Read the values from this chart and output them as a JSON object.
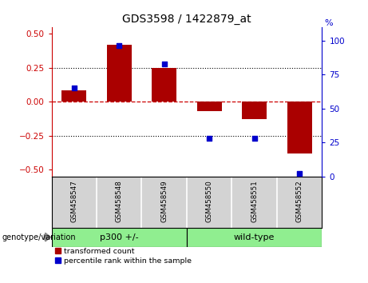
{
  "title": "GDS3598 / 1422879_at",
  "categories": [
    "GSM458547",
    "GSM458548",
    "GSM458549",
    "GSM458550",
    "GSM458551",
    "GSM458552"
  ],
  "bar_values": [
    0.08,
    0.42,
    0.25,
    -0.07,
    -0.13,
    -0.38
  ],
  "scatter_percentile": [
    65,
    96,
    83,
    28,
    28,
    2
  ],
  "bar_color": "#AA0000",
  "scatter_color": "#0000CC",
  "ylim_left": [
    -0.55,
    0.55
  ],
  "ylim_right": [
    0,
    110
  ],
  "yticks_left": [
    -0.5,
    -0.25,
    0.0,
    0.25,
    0.5
  ],
  "yticks_right": [
    0,
    25,
    50,
    75,
    100
  ],
  "dotted_lines": [
    -0.25,
    0.25
  ],
  "left_axis_color": "#CC0000",
  "right_axis_color": "#0000CC",
  "legend_entries": [
    "transformed count",
    "percentile rank within the sample"
  ],
  "group_label_prefix": "genotype/variation",
  "group_labels": [
    "p300 +/-",
    "wild-type"
  ],
  "group_ranges": [
    [
      0,
      2
    ],
    [
      3,
      5
    ]
  ],
  "group_color": "#90EE90",
  "bar_width": 0.55,
  "plot_bg": "#ffffff",
  "label_bg": "#d3d3d3"
}
